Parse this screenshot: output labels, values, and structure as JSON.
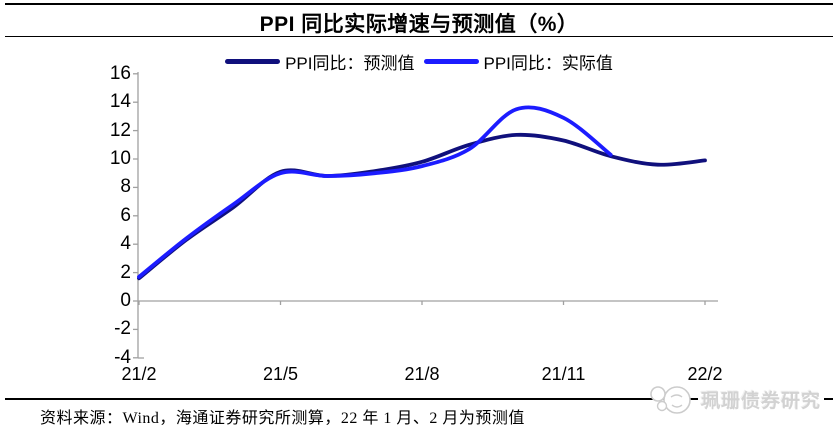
{
  "header": {
    "title": "PPI 同比实际增速与预测值（%）"
  },
  "chart_data": {
    "type": "line",
    "title": "PPI 同比实际增速与预测值（%）",
    "x": [
      "21/2",
      "21/3",
      "21/4",
      "21/5",
      "21/6",
      "21/7",
      "21/8",
      "21/9",
      "21/10",
      "21/11",
      "21/12",
      "22/1",
      "22/2"
    ],
    "x_tick_labels": [
      "21/2",
      "21/5",
      "21/8",
      "21/11",
      "22/2"
    ],
    "ylim": [
      -4,
      16
    ],
    "y_tick_step": 2,
    "grid": false,
    "legend_position": "top-center",
    "smooth": true,
    "axis_color": "#a0a0a0",
    "series": [
      {
        "name": "PPI同比：预测值",
        "color": "#10107c",
        "values": [
          1.6,
          4.3,
          6.6,
          9.1,
          8.8,
          9.15,
          9.8,
          11.0,
          11.7,
          11.3,
          10.2,
          9.6,
          9.9
        ]
      },
      {
        "name": "PPI同比：实际值",
        "color": "#1c1cff",
        "values": [
          1.7,
          4.4,
          6.8,
          9.0,
          8.8,
          9.0,
          9.5,
          10.7,
          13.5,
          12.9,
          10.3,
          null,
          null
        ]
      }
    ]
  },
  "footer": {
    "source_note": "资料来源：Wind，海通证券研究所测算，22 年 1 月、2 月为预测值"
  },
  "watermark": {
    "text": "珮珊债券研究"
  }
}
